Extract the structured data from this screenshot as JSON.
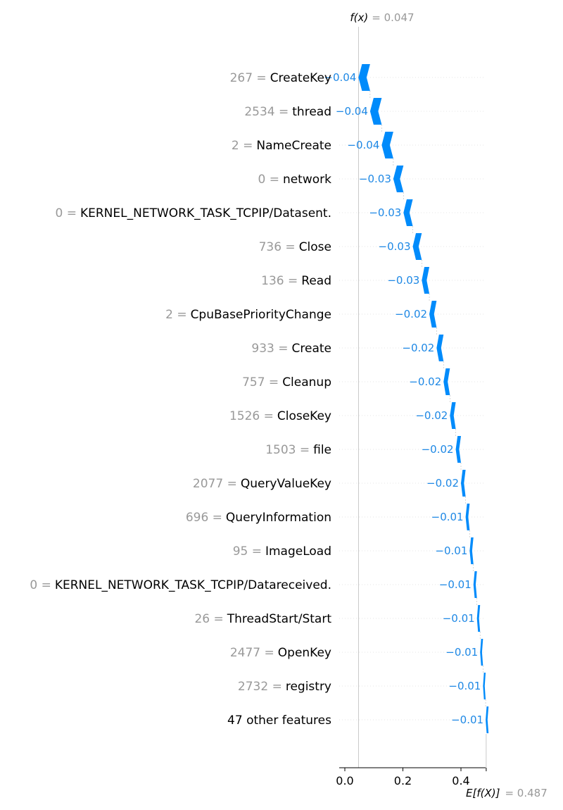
{
  "colors": {
    "negative": "#008bfb",
    "negative_text": "#1e88e5",
    "feature_value": "#999999",
    "feature_name": "#000000",
    "gridline": "#cccccc"
  },
  "chart_data": {
    "type": "waterfall",
    "fx_label": "f(x)",
    "fx_value": "= 0.047",
    "fx": 0.047,
    "efx_label": "E[f(X)]",
    "efx_value": "= 0.487",
    "efx": 0.487,
    "xlim": [
      -0.02,
      0.49
    ],
    "xticks": [
      0.0,
      0.2,
      0.4
    ],
    "xtick_labels": [
      "0.0",
      "0.2",
      "0.4"
    ],
    "features": [
      {
        "value": "267 =",
        "name": "CreateKey",
        "shap": -0.04,
        "label": "−0.04"
      },
      {
        "value": "2534 =",
        "name": "thread",
        "shap": -0.04,
        "label": "−0.04"
      },
      {
        "value": "2 =",
        "name": "NameCreate",
        "shap": -0.04,
        "label": "−0.04"
      },
      {
        "value": "0 =",
        "name": "network",
        "shap": -0.035,
        "label": "−0.03"
      },
      {
        "value": "0 =",
        "name": "KERNEL_NETWORK_TASK_TCPIP/Datasent.",
        "shap": -0.032,
        "label": "−0.03"
      },
      {
        "value": "736 =",
        "name": "Close",
        "shap": -0.031,
        "label": "−0.03"
      },
      {
        "value": "136 =",
        "name": "Read",
        "shap": -0.026,
        "label": "−0.03"
      },
      {
        "value": "2 =",
        "name": "CpuBasePriorityChange",
        "shap": -0.025,
        "label": "−0.02"
      },
      {
        "value": "933 =",
        "name": "Create",
        "shap": -0.024,
        "label": "−0.02"
      },
      {
        "value": "757 =",
        "name": "Cleanup",
        "shap": -0.022,
        "label": "−0.02"
      },
      {
        "value": "1526 =",
        "name": "CloseKey",
        "shap": -0.02,
        "label": "−0.02"
      },
      {
        "value": "1503 =",
        "name": "file",
        "shap": -0.018,
        "label": "−0.02"
      },
      {
        "value": "2077 =",
        "name": "QueryValueKey",
        "shap": -0.016,
        "label": "−0.02"
      },
      {
        "value": "696 =",
        "name": "QueryInformation",
        "shap": -0.014,
        "label": "−0.01"
      },
      {
        "value": "95 =",
        "name": "ImageLoad",
        "shap": -0.013,
        "label": "−0.01"
      },
      {
        "value": "0 =",
        "name": "KERNEL_NETWORK_TASK_TCPIP/Datareceived.",
        "shap": -0.012,
        "label": "−0.01"
      },
      {
        "value": "26 =",
        "name": "ThreadStart/Start",
        "shap": -0.011,
        "label": "−0.01"
      },
      {
        "value": "2477 =",
        "name": "OpenKey",
        "shap": -0.01,
        "label": "−0.01"
      },
      {
        "value": "2732 =",
        "name": "registry",
        "shap": -0.009,
        "label": "−0.01"
      },
      {
        "value": "",
        "name": "47 other features",
        "shap": -0.01,
        "label": "−0.01"
      }
    ]
  }
}
